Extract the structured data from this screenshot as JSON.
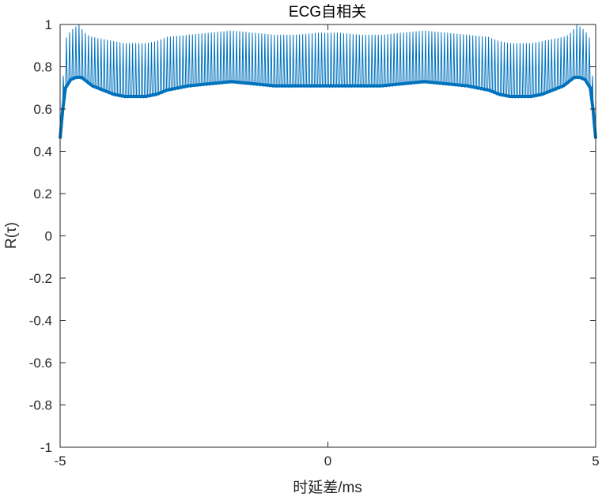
{
  "chart_data": {
    "type": "line",
    "title": "ECG自相关",
    "xlabel": "时延差/ms",
    "ylabel": "R(τ)",
    "xlim": [
      -5,
      5
    ],
    "ylim": [
      -1,
      1
    ],
    "xticks": [
      -5,
      0,
      5
    ],
    "xtick_labels": [
      "-5",
      "0",
      "5"
    ],
    "yticks": [
      -1,
      -0.8,
      -0.6,
      -0.4,
      -0.2,
      0,
      0.2,
      0.4,
      0.6,
      0.8,
      1
    ],
    "ytick_labels": [
      "-1",
      "-0.8",
      "-0.6",
      "-0.4",
      "-0.2",
      "0",
      "0.2",
      "0.4",
      "0.6",
      "0.8",
      "1"
    ],
    "grid": false,
    "line_color": "#0072BD",
    "series": [
      {
        "envelope_lower": {
          "x": [
            -5.0,
            -4.95,
            -4.9,
            -4.8,
            -4.7,
            -4.6,
            -4.5,
            -4.4,
            -4.2,
            -4.0,
            -3.8,
            -3.6,
            -3.4,
            -3.2,
            -3.0,
            -2.6,
            -2.2,
            -1.8,
            -1.4,
            -1.0,
            -0.6,
            -0.2,
            0.0,
            0.2,
            0.6,
            1.0,
            1.4,
            1.8,
            2.2,
            2.6,
            3.0,
            3.2,
            3.4,
            3.6,
            3.8,
            4.0,
            4.2,
            4.4,
            4.5,
            4.6,
            4.7,
            4.8,
            4.9,
            4.95,
            5.0
          ],
          "y": [
            0.46,
            0.6,
            0.7,
            0.74,
            0.75,
            0.75,
            0.73,
            0.71,
            0.69,
            0.67,
            0.66,
            0.66,
            0.66,
            0.67,
            0.69,
            0.71,
            0.72,
            0.73,
            0.72,
            0.71,
            0.71,
            0.71,
            0.71,
            0.71,
            0.71,
            0.71,
            0.72,
            0.73,
            0.72,
            0.71,
            0.69,
            0.67,
            0.66,
            0.66,
            0.66,
            0.67,
            0.69,
            0.71,
            0.73,
            0.75,
            0.75,
            0.74,
            0.7,
            0.6,
            0.46
          ]
        },
        "envelope_upper": {
          "x": [
            -5.0,
            -4.95,
            -4.9,
            -4.8,
            -4.7,
            -4.65,
            -4.6,
            -4.5,
            -4.4,
            -4.2,
            -4.0,
            -3.8,
            -3.6,
            -3.4,
            -3.2,
            -3.0,
            -2.6,
            -2.2,
            -1.8,
            -1.4,
            -1.0,
            -0.6,
            -0.2,
            0.0,
            0.2,
            0.6,
            1.0,
            1.4,
            1.8,
            2.2,
            2.6,
            3.0,
            3.2,
            3.4,
            3.6,
            3.8,
            4.0,
            4.2,
            4.4,
            4.5,
            4.6,
            4.65,
            4.7,
            4.8,
            4.9,
            4.95,
            5.0
          ],
          "y": [
            0.55,
            0.72,
            0.93,
            0.97,
            0.99,
            1.0,
            0.98,
            0.95,
            0.94,
            0.93,
            0.92,
            0.91,
            0.91,
            0.91,
            0.92,
            0.94,
            0.95,
            0.96,
            0.97,
            0.96,
            0.95,
            0.95,
            0.96,
            0.96,
            0.96,
            0.95,
            0.95,
            0.96,
            0.97,
            0.96,
            0.95,
            0.94,
            0.92,
            0.91,
            0.91,
            0.91,
            0.92,
            0.93,
            0.94,
            0.95,
            0.98,
            1.0,
            0.99,
            0.97,
            0.93,
            0.72,
            0.55
          ]
        },
        "spike_count": 170
      }
    ]
  }
}
